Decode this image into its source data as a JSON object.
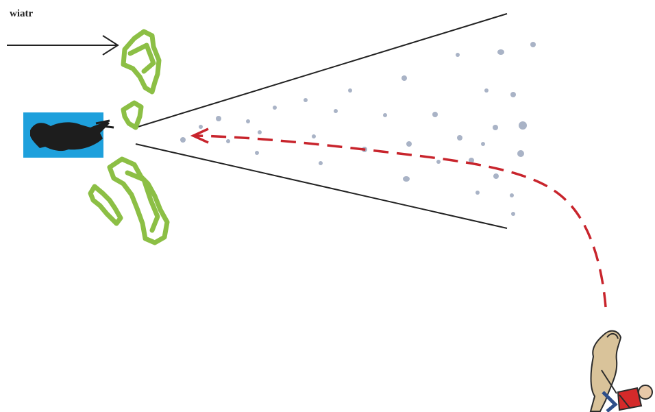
{
  "labels": {
    "wind": "wiatr"
  },
  "icons": {
    "wind_arrow": "wind-direction-arrow-icon",
    "prey": "hidden-animal-in-shelter-icon",
    "vegetation": "bush-cover-icon",
    "scent_cone": "scent-plume-icon",
    "handler": "dog-with-handler-icon"
  },
  "colors": {
    "shelter": "#1ea0dc",
    "vegetation": "#8cbf45",
    "scent_particles": "#a9b3c6",
    "path": "#c8242c",
    "cone_lines": "#222222"
  }
}
